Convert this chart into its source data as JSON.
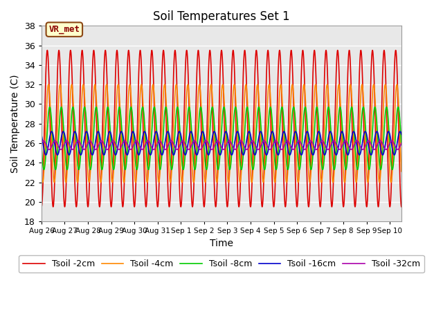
{
  "title": "Soil Temperatures Set 1",
  "xlabel": "Time",
  "ylabel": "Soil Temperature (C)",
  "ylim": [
    18,
    38
  ],
  "yticks": [
    18,
    20,
    22,
    24,
    26,
    28,
    30,
    32,
    34,
    36,
    38
  ],
  "num_days": 15.5,
  "period_hours": 12,
  "series": [
    {
      "label": "Tsoil -2cm",
      "color": "#dd0000",
      "amplitude": 8.0,
      "mean": 27.5,
      "phase_shift_hours": 0.0
    },
    {
      "label": "Tsoil -4cm",
      "color": "#ff8800",
      "amplitude": 5.0,
      "mean": 27.0,
      "phase_shift_hours": 1.2
    },
    {
      "label": "Tsoil -8cm",
      "color": "#00cc00",
      "amplitude": 3.2,
      "mean": 26.5,
      "phase_shift_hours": 2.5
    },
    {
      "label": "Tsoil -16cm",
      "color": "#0000cc",
      "amplitude": 1.2,
      "mean": 26.0,
      "phase_shift_hours": 4.5
    },
    {
      "label": "Tsoil -32cm",
      "color": "#aa00aa",
      "amplitude": 0.45,
      "mean": 25.8,
      "phase_shift_hours": 8.0
    }
  ],
  "xtick_labels": [
    "Aug 26",
    "Aug 27",
    "Aug 28",
    "Aug 29",
    "Aug 30",
    "Aug 31",
    "Sep 1",
    "Sep 2",
    "Sep 3",
    "Sep 4",
    "Sep 5",
    "Sep 6",
    "Sep 7",
    "Sep 8",
    "Sep 9",
    "Sep 10"
  ],
  "annotation_text": "VR_met",
  "background_color": "#e8e8e8",
  "grid_color": "#ffffff",
  "line_width": 1.2,
  "fig_width": 6.4,
  "fig_height": 4.8
}
